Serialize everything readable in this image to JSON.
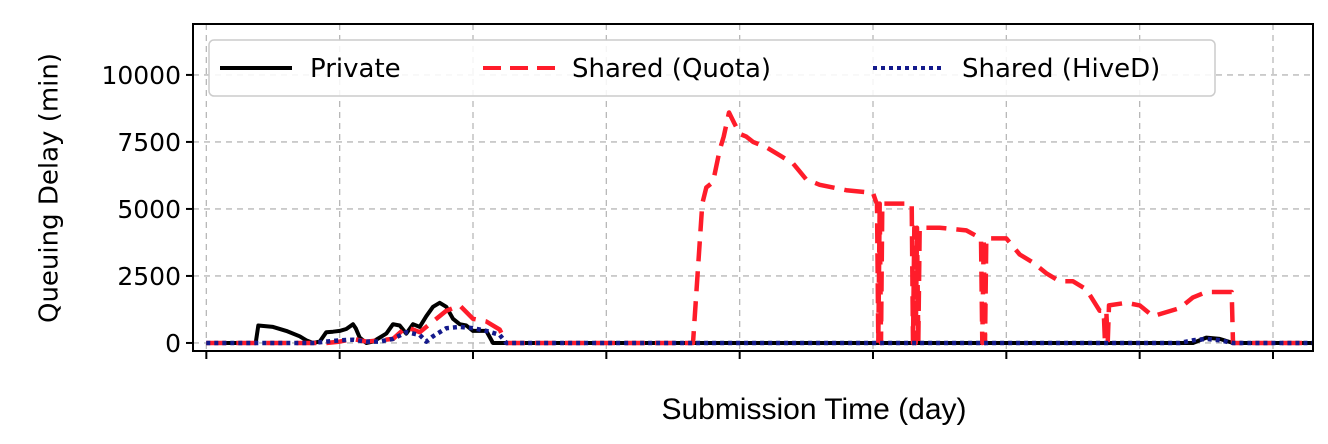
{
  "chart_data": {
    "type": "line",
    "title": "",
    "xlabel": "Submission Time (day)",
    "ylabel": "Queuing Delay (min)",
    "xlim": [
      -0.1,
      8.3
    ],
    "ylim": [
      -300,
      11900
    ],
    "yticks": [
      0,
      2500,
      5000,
      7500,
      10000
    ],
    "yticklabels": [
      "0",
      "2500",
      "5000",
      "7500",
      "10000"
    ],
    "xticks": [
      0,
      1,
      2,
      3,
      4,
      5,
      6,
      7,
      8
    ],
    "xticklabels": [
      "",
      "",
      "",
      "",
      "",
      "",
      "",
      "",
      ""
    ],
    "grid": true,
    "legend": {
      "placement": "top",
      "entries": [
        "Private",
        "Shared (Quota)",
        "Shared (HiveD)"
      ]
    },
    "series": [
      {
        "name": "Private",
        "color": "#000000",
        "style": "solid",
        "x": [
          0,
          0.37,
          0.39,
          0.5,
          0.6,
          0.7,
          0.75,
          0.8,
          0.85,
          0.9,
          0.95,
          1.0,
          1.05,
          1.1,
          1.12,
          1.15,
          1.2,
          1.25,
          1.3,
          1.35,
          1.4,
          1.45,
          1.5,
          1.55,
          1.6,
          1.65,
          1.7,
          1.75,
          1.8,
          1.85,
          1.9,
          1.95,
          2.0,
          2.05,
          2.1,
          2.15,
          2.2,
          2.25,
          7.4,
          7.5,
          7.6,
          7.7,
          7.8,
          8.3
        ],
        "y": [
          0,
          0,
          650,
          600,
          450,
          250,
          100,
          0,
          50,
          400,
          420,
          450,
          520,
          700,
          550,
          200,
          0,
          50,
          200,
          350,
          700,
          650,
          350,
          700,
          600,
          1000,
          1350,
          1500,
          1350,
          900,
          700,
          650,
          450,
          450,
          450,
          0,
          0,
          0,
          0,
          200,
          150,
          0,
          0,
          0
        ]
      },
      {
        "name": "Shared (Quota)",
        "color": "#ff1c2a",
        "style": "dashed",
        "x": [
          0,
          0.9,
          1.0,
          1.1,
          1.2,
          1.3,
          1.4,
          1.5,
          1.6,
          1.7,
          1.8,
          1.9,
          2.0,
          2.1,
          2.2,
          2.25,
          3.65,
          3.72,
          3.75,
          3.8,
          3.85,
          3.88,
          3.92,
          3.96,
          4.0,
          4.05,
          4.1,
          4.2,
          4.3,
          4.4,
          4.45,
          4.5,
          4.55,
          4.6,
          4.8,
          5.0,
          5.02,
          5.03,
          5.04,
          5.05,
          5.06,
          5.07,
          5.2,
          5.29,
          5.3,
          5.31,
          5.32,
          5.33,
          5.34,
          5.35,
          5.5,
          5.7,
          5.81,
          5.82,
          5.83,
          5.84,
          5.85,
          6.0,
          6.1,
          6.2,
          6.3,
          6.4,
          6.5,
          6.6,
          6.7,
          6.73,
          6.74,
          6.75,
          6.76,
          6.77,
          6.9,
          7.0,
          7.1,
          7.3,
          7.4,
          7.5,
          7.6,
          7.69,
          7.7,
          7.75,
          8.3
        ],
        "y": [
          0,
          0,
          50,
          150,
          50,
          100,
          150,
          600,
          400,
          800,
          1200,
          1400,
          900,
          800,
          500,
          0,
          0,
          5200,
          5800,
          6000,
          7200,
          7700,
          8600,
          8200,
          7800,
          7700,
          7500,
          7300,
          7000,
          6700,
          6400,
          6100,
          6000,
          5900,
          5700,
          5600,
          5300,
          5200,
          0,
          5200,
          0,
          5200,
          5200,
          5200,
          0,
          4300,
          0,
          4300,
          0,
          4300,
          4300,
          4200,
          3900,
          0,
          3900,
          0,
          3900,
          3900,
          3300,
          3000,
          2600,
          2300,
          2300,
          2000,
          1200,
          1200,
          0,
          1200,
          0,
          1400,
          1500,
          1400,
          1000,
          1300,
          1700,
          1900,
          1900,
          1900,
          0,
          0,
          0
        ]
      },
      {
        "name": "Shared (HiveD)",
        "color": "#141a8c",
        "style": "dotted",
        "x": [
          0,
          0.7,
          0.8,
          0.9,
          1.0,
          1.1,
          1.2,
          1.3,
          1.4,
          1.5,
          1.6,
          1.65,
          1.7,
          1.75,
          1.8,
          1.9,
          2.0,
          2.1,
          2.2,
          2.25,
          7.3,
          7.4,
          7.5,
          7.6,
          7.7,
          8.3
        ],
        "y": [
          0,
          0,
          0,
          50,
          100,
          120,
          50,
          50,
          150,
          400,
          300,
          50,
          250,
          400,
          550,
          600,
          550,
          450,
          300,
          0,
          0,
          100,
          150,
          100,
          0,
          0
        ]
      }
    ]
  }
}
